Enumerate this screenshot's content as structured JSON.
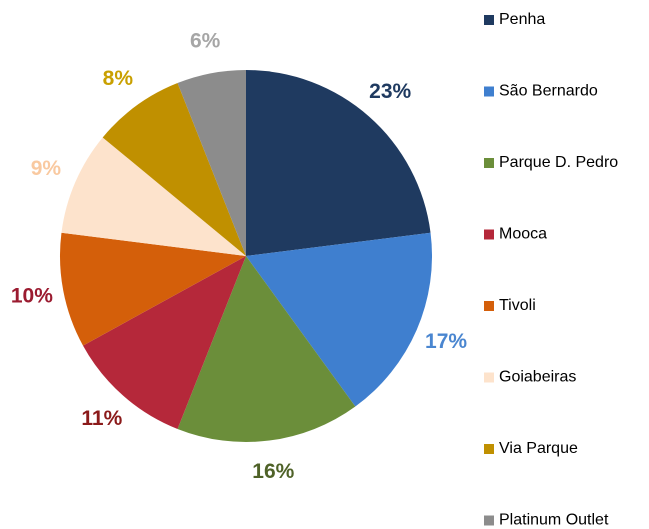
{
  "chart_data": {
    "type": "pie",
    "categories": [
      "Penha",
      "São Bernardo",
      "Parque D. Pedro",
      "Mooca",
      "Tivoli",
      "Goiabeiras",
      "Via Parque",
      "Platinum Outlet"
    ],
    "values": [
      23,
      17,
      16,
      11,
      10,
      9,
      8,
      6
    ],
    "value_labels": [
      "23%",
      "17%",
      "16%",
      "11%",
      "10%",
      "9%",
      "8%",
      "6%"
    ],
    "colors": [
      "#1f3a60",
      "#3f7fcf",
      "#6b8e3a",
      "#b5283a",
      "#d45f0a",
      "#fde3cc",
      "#c09000",
      "#8c8c8c"
    ],
    "label_colors": [
      "#1f3a60",
      "#4a86d0",
      "#4f6228",
      "#8b1a1a",
      "#9b1b30",
      "#f9c9a0",
      "#c9a000",
      "#a6a6a6"
    ],
    "legend": "right"
  }
}
